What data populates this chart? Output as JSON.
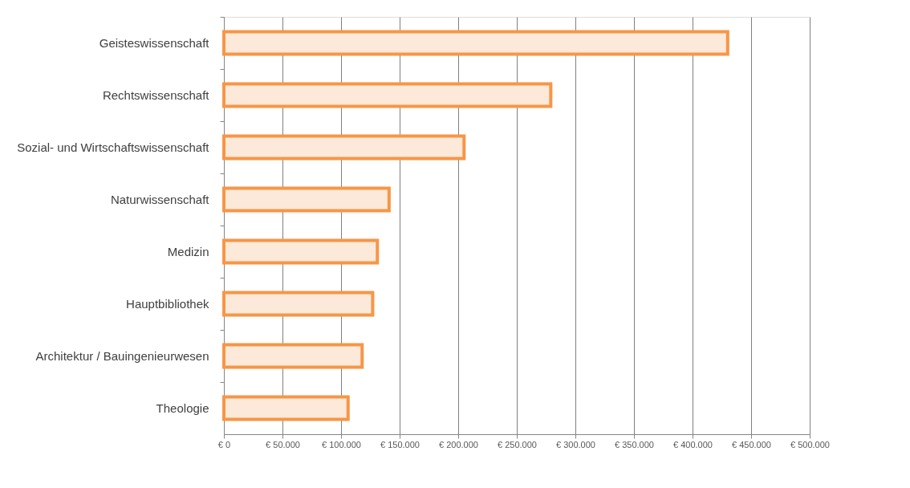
{
  "chart_data": {
    "type": "bar",
    "orientation": "horizontal",
    "categories": [
      "Geisteswissenschaft",
      "Rechtswissenschaft",
      "Sozial- und Wirtschaftswissenschaft",
      "Naturwissenschaft",
      "Medizin",
      "Hauptbibliothek",
      "Architektur / Bauingenieurwesen",
      "Theologie"
    ],
    "values": [
      430000,
      279000,
      205000,
      141000,
      131000,
      127000,
      118000,
      106000
    ],
    "color": "#fde9d9",
    "xlim": [
      0,
      500000
    ],
    "xticks": [
      {
        "value": 0,
        "label": "€ 0"
      },
      {
        "value": 50000,
        "label": "€ 50.000"
      },
      {
        "value": 100000,
        "label": "€ 100.000"
      },
      {
        "value": 150000,
        "label": "€ 150.000"
      },
      {
        "value": 200000,
        "label": "€ 200.000"
      },
      {
        "value": 250000,
        "label": "€ 250.000"
      },
      {
        "value": 300000,
        "label": "€ 300.000"
      },
      {
        "value": 350000,
        "label": "€ 350.000"
      },
      {
        "value": 400000,
        "label": "€ 400.000"
      },
      {
        "value": 450000,
        "label": "€ 450.000"
      },
      {
        "value": 500000,
        "label": "€ 500.000"
      }
    ],
    "grid": "x"
  }
}
